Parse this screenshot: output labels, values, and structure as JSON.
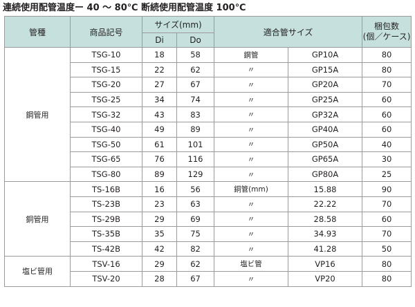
{
  "title": "連続使用配管温度ー 40 ～ 80℃ 断続使用配管温度 100℃",
  "headers": {
    "pipe_type": "管種",
    "product_code": "商品記号",
    "size": "サイズ(mm)",
    "di": "Di",
    "do": "Do",
    "fit_size": "適合管サイズ",
    "pack_line1": "梱包数",
    "pack_line2": "(個／ケース)"
  },
  "groups": [
    {
      "label": "鋼管用",
      "rows": [
        {
          "code": "TSG-10",
          "di": "18",
          "do": "58",
          "material": "鋼管",
          "fit": "GP10A",
          "pack": "80"
        },
        {
          "code": "TSG-15",
          "di": "22",
          "do": "62",
          "material": "〃",
          "fit": "GP15A",
          "pack": "80"
        },
        {
          "code": "TSG-20",
          "di": "27",
          "do": "67",
          "material": "〃",
          "fit": "GP20A",
          "pack": "70"
        },
        {
          "code": "TSG-25",
          "di": "34",
          "do": "74",
          "material": "〃",
          "fit": "GP25A",
          "pack": "60"
        },
        {
          "code": "TSG-32",
          "di": "43",
          "do": "83",
          "material": "〃",
          "fit": "GP32A",
          "pack": "60"
        },
        {
          "code": "TSG-40",
          "di": "49",
          "do": "89",
          "material": "〃",
          "fit": "GP40A",
          "pack": "60"
        },
        {
          "code": "TSG-50",
          "di": "61",
          "do": "101",
          "material": "〃",
          "fit": "GP50A",
          "pack": "40"
        },
        {
          "code": "TSG-65",
          "di": "76",
          "do": "116",
          "material": "〃",
          "fit": "GP65A",
          "pack": "30"
        },
        {
          "code": "TSG-80",
          "di": "89",
          "do": "129",
          "material": "〃",
          "fit": "GP80A",
          "pack": "25"
        }
      ]
    },
    {
      "label": "銅管用",
      "rows": [
        {
          "code": "TS-16B",
          "di": "16",
          "do": "56",
          "material": "銅管(mm)",
          "fit": "15.88",
          "pack": "90"
        },
        {
          "code": "TS-23B",
          "di": "23",
          "do": "63",
          "material": "〃",
          "fit": "22.22",
          "pack": "70"
        },
        {
          "code": "TS-29B",
          "di": "29",
          "do": "69",
          "material": "〃",
          "fit": "28.58",
          "pack": "60"
        },
        {
          "code": "TS-35B",
          "di": "35",
          "do": "75",
          "material": "〃",
          "fit": "34.93",
          "pack": "70"
        },
        {
          "code": "TS-42B",
          "di": "42",
          "do": "82",
          "material": "〃",
          "fit": "41.28",
          "pack": "50"
        }
      ]
    },
    {
      "label": "塩ビ管用",
      "rows": [
        {
          "code": "TSV-16",
          "di": "29",
          "do": "62",
          "material": "塩ビ管",
          "fit": "VP16",
          "pack": "80"
        },
        {
          "code": "TSV-20",
          "di": "28",
          "do": "67",
          "material": "〃",
          "fit": "VP20",
          "pack": "80"
        }
      ]
    }
  ]
}
